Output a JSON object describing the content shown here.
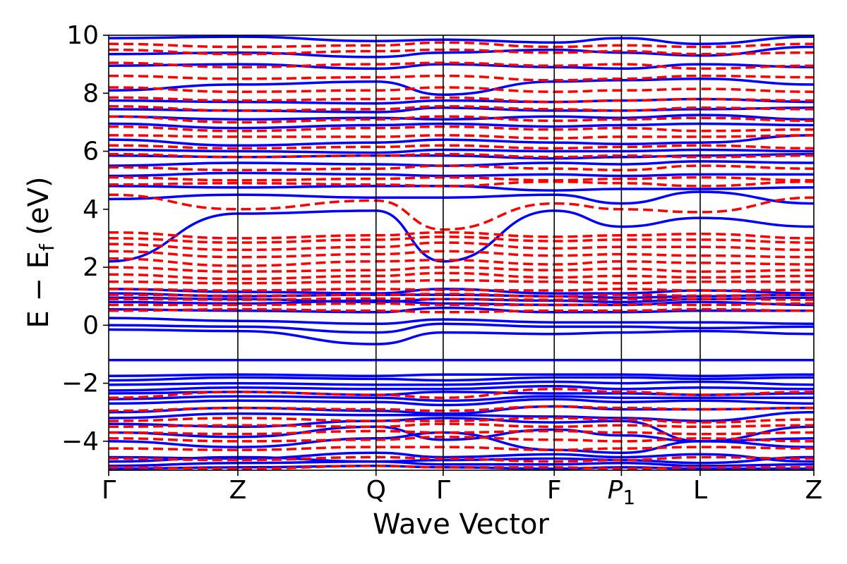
{
  "chart_data": {
    "type": "line",
    "title": "",
    "xlabel": "Wave Vector",
    "ylabel": "E − E",
    "ylabel_sub": "f",
    "ylabel_unit": " (eV)",
    "ylim": [
      -5,
      10
    ],
    "yticks": [
      -4,
      -2,
      0,
      2,
      4,
      6,
      8,
      10
    ],
    "ytick_labels": [
      "−4",
      "−2",
      "0",
      "2",
      "4",
      "6",
      "8",
      "10"
    ],
    "kpath": [
      {
        "label": "Γ",
        "sub": "",
        "italic": false,
        "pos": 0.0
      },
      {
        "label": "Z",
        "sub": "",
        "italic": false,
        "pos": 1.0
      },
      {
        "label": "Q",
        "sub": "",
        "italic": false,
        "pos": 2.07
      },
      {
        "label": "Γ",
        "sub": "",
        "italic": false,
        "pos": 2.59
      },
      {
        "label": "F",
        "sub": "",
        "italic": false,
        "pos": 3.45
      },
      {
        "label": "P",
        "sub": "1",
        "italic": true,
        "pos": 3.97
      },
      {
        "label": "L",
        "sub": "",
        "italic": false,
        "pos": 4.58
      },
      {
        "label": "Z",
        "sub": "",
        "italic": false,
        "pos": 5.46
      }
    ],
    "grid": false,
    "legend": "none",
    "series": [
      {
        "style": "solid",
        "color": "#0000ff",
        "bands": [
          [
            -4.95,
            -4.9,
            -4.85,
            -4.9,
            -4.95,
            -4.9,
            -4.95,
            -4.95
          ],
          [
            -4.85,
            -4.75,
            -4.7,
            -4.8,
            -4.8,
            -4.75,
            -4.85,
            -4.8
          ],
          [
            -4.7,
            -4.55,
            -4.7,
            -4.65,
            -4.6,
            -4.65,
            -4.75,
            -4.55
          ],
          [
            -4.55,
            -4.6,
            -4.4,
            -4.55,
            -4.45,
            -4.55,
            -4.45,
            -4.7
          ],
          [
            -4.0,
            -4.2,
            -3.9,
            -3.7,
            -4.3,
            -4.4,
            -4.0,
            -4.2
          ],
          [
            -3.7,
            -3.85,
            -3.5,
            -3.95,
            -3.6,
            -3.8,
            -4.0,
            -3.9
          ],
          [
            -3.4,
            -3.5,
            -3.3,
            -3.2,
            -3.35,
            -3.3,
            -4.0,
            -3.5
          ],
          [
            -3.2,
            -3.05,
            -3.1,
            -3.1,
            -3.15,
            -3.2,
            -3.3,
            -3.0
          ],
          [
            -3.0,
            -2.85,
            -2.95,
            -3.05,
            -2.8,
            -2.9,
            -2.9,
            -2.85
          ],
          [
            -2.7,
            -2.6,
            -2.65,
            -2.75,
            -2.55,
            -2.65,
            -2.6,
            -2.7
          ],
          [
            -2.55,
            -2.45,
            -2.5,
            -2.6,
            -2.45,
            -2.5,
            -2.5,
            -2.5
          ],
          [
            -2.35,
            -2.3,
            -2.4,
            -2.3,
            -2.35,
            -2.35,
            -2.4,
            -2.35
          ],
          [
            -2.25,
            -2.15,
            -2.2,
            -2.2,
            -2.1,
            -2.2,
            -2.15,
            -2.2
          ],
          [
            -2.05,
            -2.0,
            -2.05,
            -2.05,
            -1.95,
            -2.0,
            -1.95,
            -2.05
          ],
          [
            -1.9,
            -1.8,
            -1.85,
            -1.9,
            -1.8,
            -1.8,
            -1.85,
            -1.8
          ],
          [
            -1.75,
            -1.7,
            -1.75,
            -1.7,
            -1.7,
            -1.7,
            -1.75,
            -1.7
          ],
          [
            -1.2,
            -1.2,
            -1.2,
            -1.2,
            -1.2,
            -1.2,
            -1.2,
            -1.2
          ],
          [
            -0.15,
            -0.2,
            -0.65,
            -0.25,
            -0.3,
            -0.25,
            -0.2,
            -0.3
          ],
          [
            0.0,
            -0.05,
            -0.25,
            0.05,
            -0.05,
            -0.05,
            -0.1,
            -0.05
          ],
          [
            0.25,
            0.15,
            0.05,
            0.2,
            0.1,
            0.1,
            0.1,
            0.05
          ],
          [
            0.55,
            0.5,
            0.45,
            0.6,
            0.45,
            0.45,
            0.5,
            0.5
          ],
          [
            0.8,
            0.75,
            0.85,
            0.75,
            0.7,
            0.7,
            0.8,
            0.7
          ],
          [
            0.95,
            0.9,
            0.8,
            0.9,
            0.85,
            0.8,
            0.9,
            0.95
          ],
          [
            1.1,
            1.0,
            1.05,
            1.05,
            1.0,
            0.95,
            1.0,
            1.05
          ],
          [
            1.25,
            1.15,
            1.1,
            1.25,
            1.1,
            1.1,
            1.2,
            1.1
          ],
          [
            2.2,
            3.85,
            3.95,
            2.2,
            3.95,
            3.4,
            3.7,
            3.4
          ],
          [
            4.35,
            4.5,
            4.4,
            4.4,
            4.5,
            4.2,
            4.6,
            4.2
          ],
          [
            4.8,
            4.75,
            4.8,
            4.8,
            4.65,
            4.7,
            4.7,
            4.75
          ],
          [
            5.15,
            5.25,
            5.2,
            5.15,
            5.2,
            5.15,
            5.2,
            5.2
          ],
          [
            5.5,
            5.6,
            5.55,
            5.5,
            5.6,
            5.55,
            5.65,
            5.6
          ],
          [
            5.85,
            5.8,
            5.85,
            5.85,
            5.75,
            5.8,
            5.85,
            5.9
          ],
          [
            6.05,
            6.0,
            5.95,
            6.05,
            6.0,
            6.0,
            6.05,
            6.0
          ],
          [
            6.4,
            6.2,
            6.3,
            6.4,
            6.3,
            6.25,
            6.3,
            6.55
          ],
          [
            6.95,
            6.8,
            6.9,
            6.95,
            6.85,
            6.9,
            6.95,
            6.9
          ],
          [
            7.2,
            7.1,
            7.15,
            7.1,
            7.2,
            7.15,
            7.25,
            7.1
          ],
          [
            7.45,
            7.4,
            7.35,
            7.5,
            7.4,
            7.4,
            7.45,
            7.5
          ],
          [
            7.75,
            7.7,
            7.65,
            7.75,
            7.7,
            7.75,
            7.8,
            7.7
          ],
          [
            8.1,
            8.3,
            8.4,
            7.95,
            8.4,
            8.45,
            8.5,
            8.3
          ],
          [
            8.95,
            9.0,
            8.85,
            9.0,
            8.9,
            8.85,
            9.0,
            8.9
          ],
          [
            9.35,
            9.4,
            9.25,
            9.4,
            9.5,
            9.4,
            9.3,
            9.6
          ],
          [
            9.9,
            9.95,
            9.8,
            9.85,
            9.75,
            9.9,
            9.7,
            9.95
          ]
        ]
      },
      {
        "style": "dashed",
        "color": "#ff0000",
        "bands": [
          [
            -4.9,
            -4.95,
            -4.85,
            -4.9,
            -4.9,
            -4.95,
            -4.9,
            -4.9
          ],
          [
            -4.6,
            -4.65,
            -4.55,
            -4.6,
            -4.7,
            -4.65,
            -4.55,
            -4.6
          ],
          [
            -4.25,
            -4.3,
            -4.2,
            -4.2,
            -4.3,
            -4.25,
            -4.2,
            -4.25
          ],
          [
            -3.9,
            -4.0,
            -3.95,
            -3.85,
            -3.95,
            -4.0,
            -3.9,
            -4.0
          ],
          [
            -3.7,
            -3.75,
            -3.65,
            -3.7,
            -3.65,
            -3.7,
            -3.75,
            -3.7
          ],
          [
            -3.5,
            -3.45,
            -3.5,
            -3.4,
            -3.5,
            -3.45,
            -3.5,
            -3.45
          ],
          [
            -3.3,
            -3.2,
            -3.3,
            -3.3,
            -3.2,
            -3.25,
            -3.35,
            -3.25
          ],
          [
            -2.95,
            -2.85,
            -2.9,
            -2.95,
            -2.8,
            -2.85,
            -2.9,
            -2.85
          ],
          [
            -2.5,
            -2.3,
            -2.4,
            -2.5,
            -2.2,
            -2.3,
            -2.4,
            -2.3
          ],
          [
            0.5,
            0.55,
            0.5,
            0.45,
            0.5,
            0.5,
            0.55,
            0.5
          ],
          [
            0.7,
            0.7,
            0.75,
            0.7,
            0.7,
            0.72,
            0.7,
            0.75
          ],
          [
            0.9,
            0.88,
            0.92,
            0.9,
            0.88,
            0.9,
            0.9,
            0.88
          ],
          [
            1.05,
            1.02,
            1.05,
            1.08,
            1.0,
            1.05,
            1.02,
            1.05
          ],
          [
            1.25,
            1.2,
            1.25,
            1.22,
            1.2,
            1.25,
            1.2,
            1.22
          ],
          [
            1.5,
            1.45,
            1.5,
            1.55,
            1.5,
            1.45,
            1.5,
            1.5
          ],
          [
            1.75,
            1.6,
            1.7,
            1.8,
            1.65,
            1.7,
            1.65,
            1.7
          ],
          [
            2.0,
            1.85,
            1.9,
            2.0,
            1.9,
            1.95,
            1.85,
            1.9
          ],
          [
            2.3,
            2.05,
            2.2,
            2.25,
            2.1,
            2.2,
            2.15,
            2.1
          ],
          [
            2.55,
            2.35,
            2.45,
            2.55,
            2.4,
            2.45,
            2.4,
            2.35
          ],
          [
            2.8,
            2.6,
            2.7,
            2.85,
            2.65,
            2.7,
            2.7,
            2.6
          ],
          [
            3.0,
            2.85,
            2.95,
            3.05,
            2.9,
            2.95,
            2.95,
            2.85
          ],
          [
            3.2,
            3.0,
            3.1,
            3.2,
            3.05,
            3.1,
            3.15,
            3.0
          ],
          [
            4.5,
            4.0,
            4.3,
            3.3,
            4.2,
            4.0,
            3.9,
            4.4
          ],
          [
            4.85,
            4.9,
            4.85,
            4.8,
            4.95,
            4.9,
            4.8,
            4.95
          ],
          [
            5.1,
            5.0,
            5.05,
            5.1,
            5.0,
            5.05,
            5.1,
            5.0
          ],
          [
            5.45,
            5.35,
            5.4,
            5.5,
            5.4,
            5.35,
            5.5,
            5.4
          ],
          [
            5.9,
            5.8,
            5.85,
            5.9,
            5.8,
            5.85,
            5.8,
            5.85
          ],
          [
            6.2,
            6.1,
            6.15,
            6.2,
            6.1,
            6.15,
            6.2,
            6.1
          ],
          [
            6.55,
            6.5,
            6.5,
            6.55,
            6.45,
            6.5,
            6.5,
            6.55
          ],
          [
            6.85,
            6.7,
            6.8,
            6.85,
            6.75,
            6.8,
            6.7,
            6.75
          ],
          [
            7.2,
            7.0,
            7.1,
            7.2,
            7.05,
            7.1,
            7.15,
            7.05
          ],
          [
            7.55,
            7.4,
            7.45,
            7.55,
            7.45,
            7.4,
            7.5,
            7.45
          ],
          [
            7.85,
            7.75,
            7.8,
            7.85,
            7.7,
            7.75,
            7.8,
            7.75
          ],
          [
            8.2,
            8.05,
            8.1,
            8.2,
            8.05,
            8.1,
            8.15,
            8.05
          ],
          [
            8.6,
            8.5,
            8.55,
            8.6,
            8.45,
            8.5,
            8.6,
            8.55
          ],
          [
            9.05,
            8.9,
            9.0,
            9.05,
            8.95,
            9.0,
            8.85,
            8.95
          ],
          [
            9.5,
            9.35,
            9.45,
            9.5,
            9.4,
            9.45,
            9.35,
            9.4
          ],
          [
            9.7,
            9.6,
            9.65,
            9.75,
            9.6,
            9.65,
            9.6,
            9.7
          ]
        ]
      }
    ]
  }
}
